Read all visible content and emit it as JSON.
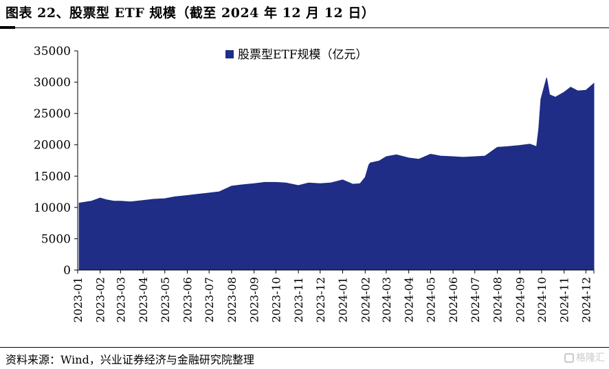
{
  "figure": {
    "title": "图表 22、股票型 ETF 规模（截至 2024 年 12 月 12 日）",
    "source": "资料来源：Wind，兴业证券经济与金融研究院整理",
    "watermark": "格隆汇"
  },
  "chart_data": {
    "type": "area",
    "title": "",
    "xlabel": "",
    "ylabel": "",
    "ylim": [
      0,
      35000
    ],
    "yticks": [
      0,
      5000,
      10000,
      15000,
      20000,
      25000,
      30000,
      35000
    ],
    "xticks": [
      "2023-01",
      "2023-02",
      "2023-03",
      "2023-04",
      "2023-05",
      "2023-06",
      "2023-07",
      "2023-08",
      "2023-09",
      "2023-10",
      "2023-11",
      "2023-12",
      "2024-01",
      "2024-02",
      "2024-03",
      "2024-04",
      "2024-05",
      "2024-06",
      "2024-07",
      "2024-08",
      "2024-09",
      "2024-10",
      "2024-11",
      "2024-12"
    ],
    "grid": false,
    "legend_position": "top-center",
    "color": "#1f2d86",
    "series": [
      {
        "name": "股票型ETF规模（亿元）",
        "x": [
          "2023-01-03",
          "2023-01-20",
          "2023-02-01",
          "2023-02-10",
          "2023-02-20",
          "2023-03-01",
          "2023-03-15",
          "2023-04-01",
          "2023-04-15",
          "2023-05-01",
          "2023-05-15",
          "2023-06-01",
          "2023-06-15",
          "2023-07-01",
          "2023-07-15",
          "2023-08-01",
          "2023-08-15",
          "2023-09-01",
          "2023-09-15",
          "2023-10-01",
          "2023-10-15",
          "2023-11-01",
          "2023-11-15",
          "2023-12-01",
          "2023-12-15",
          "2024-01-01",
          "2024-01-15",
          "2024-01-25",
          "2024-02-01",
          "2024-02-06",
          "2024-02-08",
          "2024-02-20",
          "2024-03-01",
          "2024-03-15",
          "2024-04-01",
          "2024-04-15",
          "2024-05-01",
          "2024-05-15",
          "2024-06-01",
          "2024-06-15",
          "2024-07-01",
          "2024-07-15",
          "2024-08-01",
          "2024-08-15",
          "2024-09-01",
          "2024-09-15",
          "2024-09-24",
          "2024-09-27",
          "2024-09-30",
          "2024-10-08",
          "2024-10-12",
          "2024-10-20",
          "2024-11-01",
          "2024-11-10",
          "2024-11-20",
          "2024-12-01",
          "2024-12-12"
        ],
        "values": [
          10700,
          11000,
          11500,
          11200,
          11000,
          11000,
          10900,
          11100,
          11300,
          11400,
          11700,
          11900,
          12100,
          12300,
          12500,
          13400,
          13600,
          13800,
          14000,
          14000,
          13900,
          13500,
          13900,
          13800,
          13900,
          14400,
          13700,
          13800,
          14800,
          16800,
          17100,
          17400,
          18100,
          18400,
          17900,
          17700,
          18500,
          18200,
          18100,
          18000,
          18100,
          18200,
          19600,
          19700,
          19900,
          20100,
          19700,
          22500,
          27300,
          30700,
          28000,
          27600,
          28400,
          29200,
          28600,
          28700,
          29800
        ]
      }
    ]
  }
}
